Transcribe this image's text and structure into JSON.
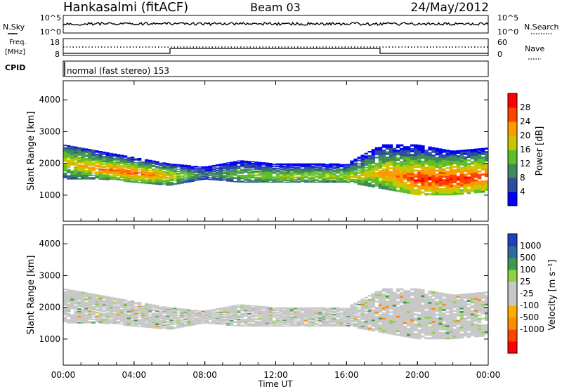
{
  "header": {
    "station": "Hankasalmi (fitACF)",
    "beam": "Beam 03",
    "date": "24/May/2012"
  },
  "nsky_panel": {
    "left_label": "N.Sky",
    "right_label": "N.Search",
    "left_ticks": [
      "10^5",
      "10^0"
    ],
    "right_ticks": [
      "10^5",
      "10^0"
    ]
  },
  "freq_panel": {
    "left_label_1": "Freq.",
    "left_label_2": "[MHz]",
    "right_label": "Nave",
    "left_ticks": [
      "18",
      "8"
    ],
    "right_ticks": [
      "60",
      "0"
    ]
  },
  "cpid_panel": {
    "label": "CPID",
    "text": "normal (fast stereo) 153"
  },
  "colors": {
    "power": [
      "#0000ff",
      "#2e4da0",
      "#3f8a5a",
      "#5fbf2a",
      "#c8c800",
      "#ff9900",
      "#ff4400",
      "#ff0000"
    ],
    "velocity": [
      "#ff0000",
      "#ff4400",
      "#ff8c00",
      "#ffae00",
      "#c8c8c8",
      "#c8c8c8",
      "#8fd24a",
      "#3f9a4f",
      "#2e6a9a",
      "#1f3fbf"
    ]
  },
  "chart_data": [
    {
      "type": "heatmap",
      "name": "power",
      "ylabel": "Slant Range [km]",
      "yticks": [
        "1000",
        "2000",
        "3000",
        "4000"
      ],
      "ylim": [
        180,
        4600
      ],
      "colorbar_label": "Power [dB]",
      "colorbar_ticks": [
        "4",
        "8",
        "12",
        "16",
        "20",
        "24",
        "28"
      ],
      "color_range": [
        0,
        30
      ],
      "echo_band": [
        {
          "t": 0,
          "lo": 1500,
          "hi": 2600,
          "peak": 2050,
          "p": 18
        },
        {
          "t": 2,
          "lo": 1500,
          "hi": 2400,
          "peak": 1850,
          "p": 22
        },
        {
          "t": 4,
          "lo": 1400,
          "hi": 2200,
          "peak": 1700,
          "p": 24
        },
        {
          "t": 6,
          "lo": 1300,
          "hi": 2000,
          "peak": 1600,
          "p": 20
        },
        {
          "t": 8,
          "lo": 1500,
          "hi": 1900,
          "peak": 1650,
          "p": 8
        },
        {
          "t": 10,
          "lo": 1400,
          "hi": 2100,
          "peak": 1650,
          "p": 14
        },
        {
          "t": 12,
          "lo": 1400,
          "hi": 2000,
          "peak": 1600,
          "p": 15
        },
        {
          "t": 14,
          "lo": 1400,
          "hi": 2000,
          "peak": 1600,
          "p": 16
        },
        {
          "t": 16,
          "lo": 1400,
          "hi": 2000,
          "peak": 1600,
          "p": 16
        },
        {
          "t": 18,
          "lo": 1200,
          "hi": 2600,
          "peak": 1700,
          "p": 20
        },
        {
          "t": 20,
          "lo": 1000,
          "hi": 2600,
          "peak": 1500,
          "p": 26
        },
        {
          "t": 22,
          "lo": 1000,
          "hi": 2400,
          "peak": 1500,
          "p": 27
        },
        {
          "t": 24,
          "lo": 1100,
          "hi": 2500,
          "peak": 1600,
          "p": 26
        }
      ]
    },
    {
      "type": "heatmap",
      "name": "velocity",
      "ylabel": "Slant Range [km]",
      "yticks": [
        "1000",
        "2000",
        "3000",
        "4000"
      ],
      "ylim": [
        180,
        4600
      ],
      "colorbar_label": "Velocity [m s⁻¹]",
      "colorbar_ticks": [
        "1000",
        "500",
        "100",
        "25",
        "-25",
        "-100",
        "-500",
        "-1000"
      ],
      "xlabel": "Time UT",
      "xticks": [
        "00:00",
        "04:00",
        "08:00",
        "12:00",
        "16:00",
        "20:00",
        "00:00"
      ],
      "xlim": [
        0,
        24
      ]
    }
  ]
}
